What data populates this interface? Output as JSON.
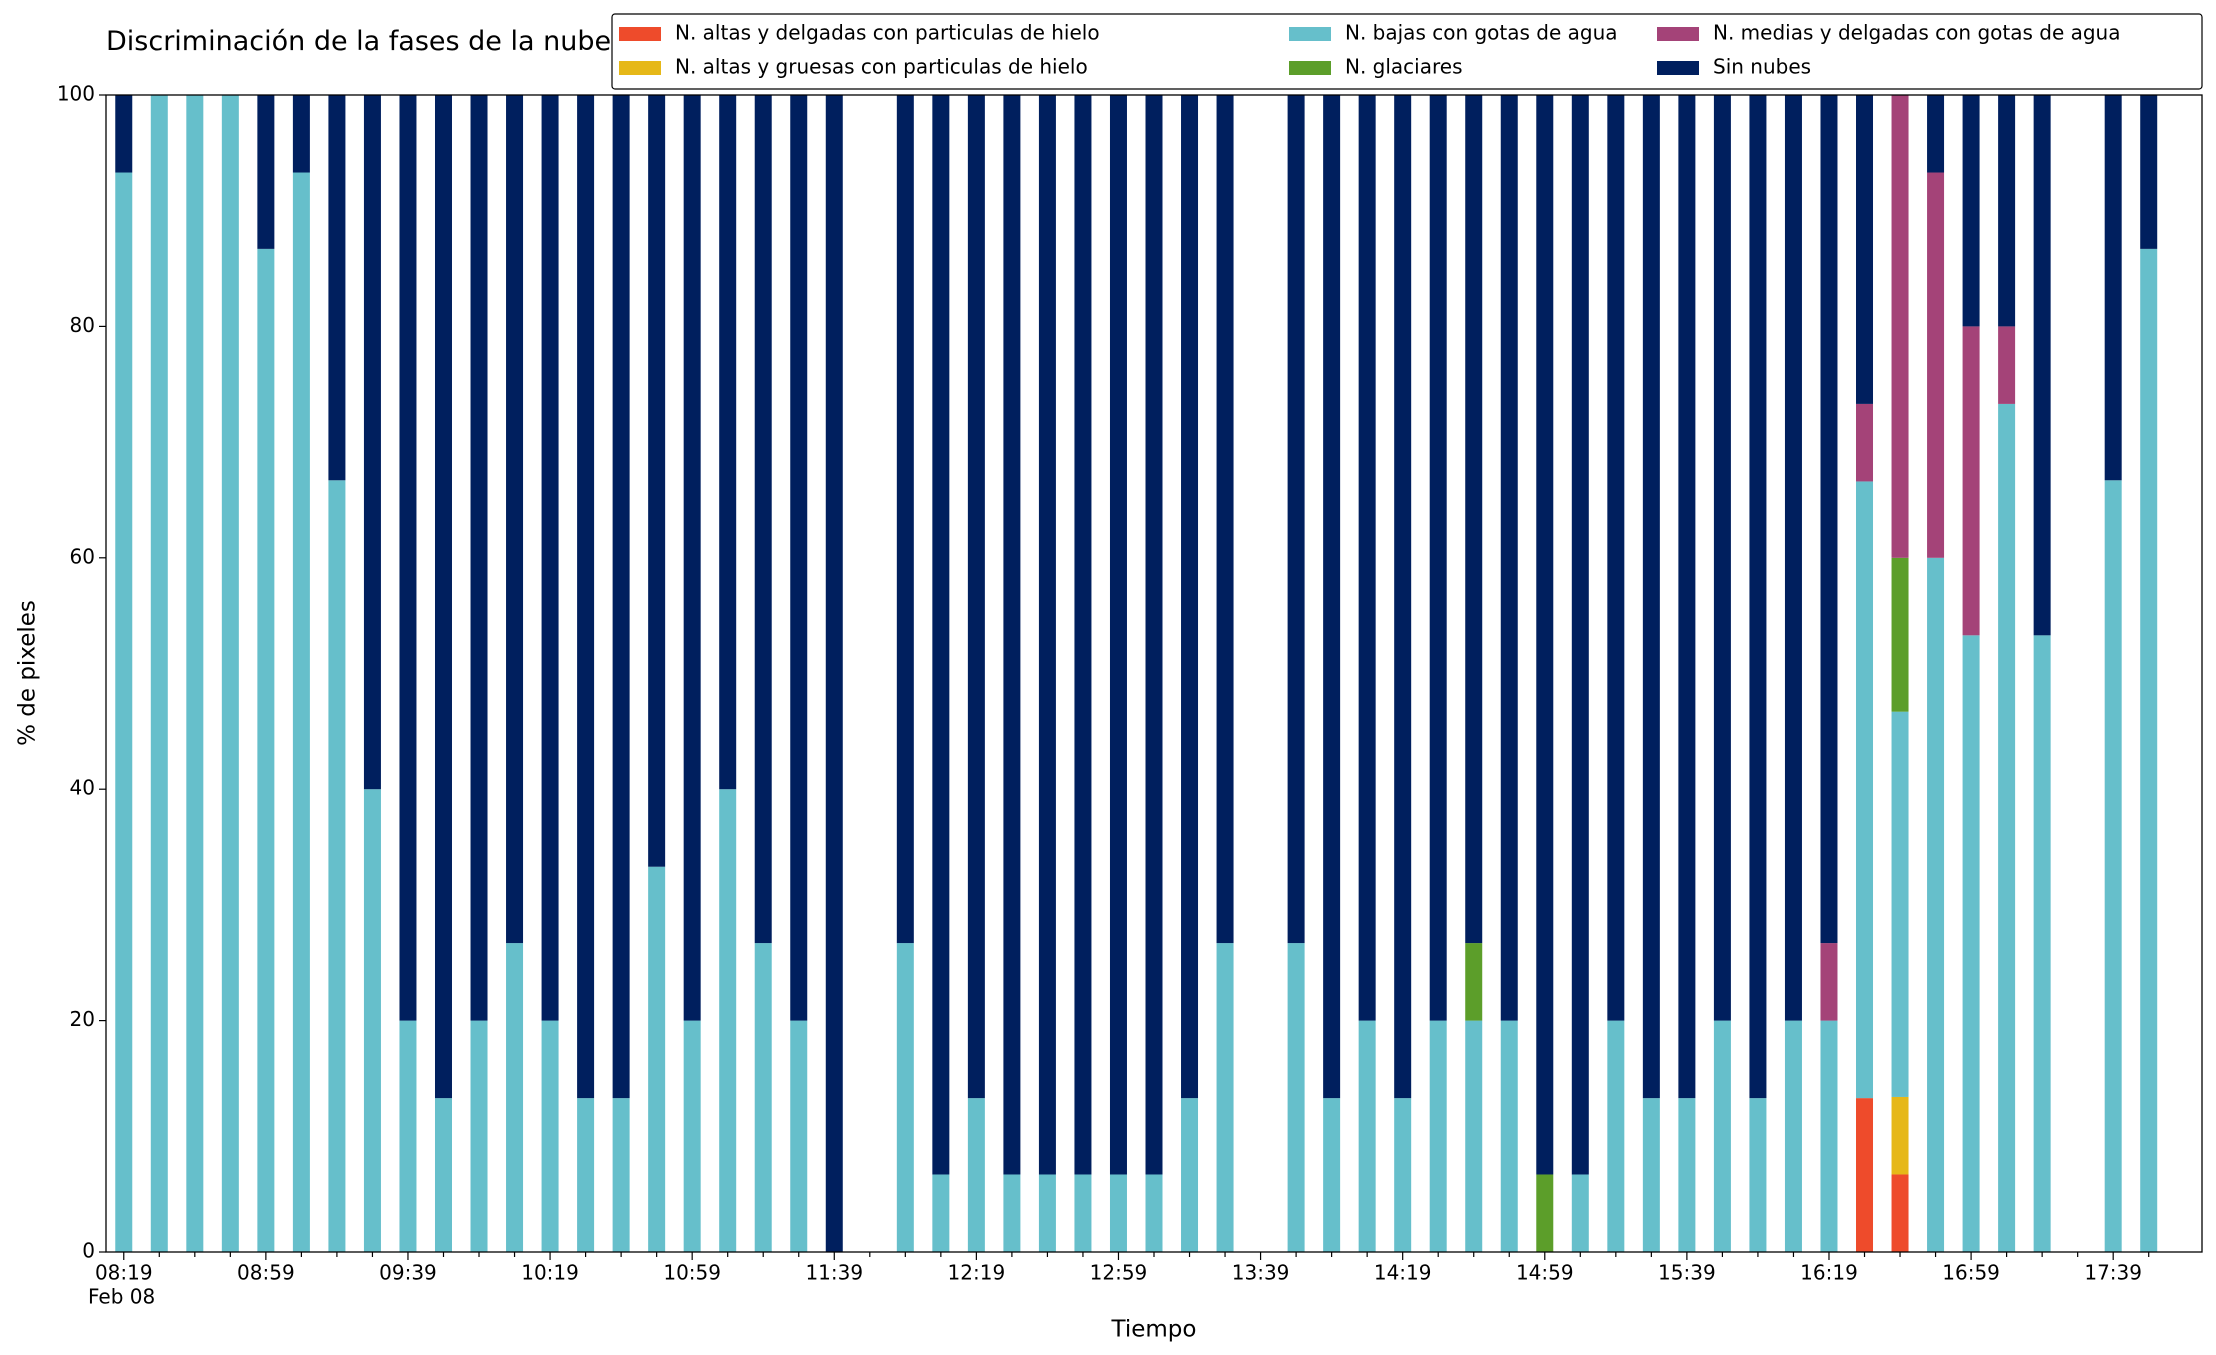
{
  "chart_data": {
    "type": "bar",
    "stacked": true,
    "title": "Discriminación de la fases de la nube en Copacabana",
    "xlabel": "Tiempo",
    "ylabel": "% de pixeles",
    "date_label": "Feb 08",
    "categories": [
      "08:19",
      null,
      null,
      null,
      "08:59",
      null,
      null,
      null,
      "09:39",
      null,
      null,
      null,
      "10:19",
      null,
      null,
      null,
      "10:59",
      null,
      null,
      null,
      "11:39",
      null,
      null,
      null,
      "12:19",
      null,
      null,
      null,
      "12:59",
      null,
      null,
      null,
      "13:39",
      null,
      null,
      null,
      "14:19",
      null,
      null,
      null,
      "14:59",
      null,
      null,
      null,
      "15:39",
      null,
      null,
      null,
      "16:19",
      null,
      null,
      null,
      "16:59",
      null,
      null,
      null,
      "17:39",
      null
    ],
    "series": [
      {
        "name": "N. altas y delgadas con particulas de hielo",
        "color": "#ee4b2b",
        "values": [
          0,
          0,
          0,
          0,
          0,
          0,
          0,
          0,
          0,
          0,
          0,
          0,
          0,
          0,
          0,
          0,
          0,
          0,
          0,
          0,
          0,
          null,
          0,
          0,
          0,
          0,
          0,
          0,
          0,
          0,
          0,
          0,
          null,
          0,
          0,
          0,
          0,
          0,
          0,
          0,
          0,
          0,
          0,
          0,
          0,
          0,
          0,
          0,
          0,
          13.3,
          6.7,
          0,
          0,
          0,
          0,
          null,
          0,
          0
        ]
      },
      {
        "name": "N. altas y gruesas con particulas de hielo",
        "color": "#e6b818",
        "values": [
          0,
          0,
          0,
          0,
          0,
          0,
          0,
          0,
          0,
          0,
          0,
          0,
          0,
          0,
          0,
          0,
          0,
          0,
          0,
          0,
          0,
          null,
          0,
          0,
          0,
          0,
          0,
          0,
          0,
          0,
          0,
          0,
          null,
          0,
          0,
          0,
          0,
          0,
          0,
          0,
          0,
          0,
          0,
          0,
          0,
          0,
          0,
          0,
          0,
          0,
          6.7,
          0,
          0,
          0,
          0,
          null,
          0,
          0
        ]
      },
      {
        "name": "N. bajas con gotas de agua",
        "color": "#66bfcb",
        "values": [
          93.3,
          100,
          100,
          100,
          86.7,
          93.3,
          66.7,
          40,
          20,
          13.3,
          20,
          26.7,
          20,
          13.3,
          13.3,
          33.3,
          20,
          40,
          26.7,
          20,
          0,
          null,
          26.7,
          6.7,
          13.3,
          6.7,
          6.7,
          6.7,
          6.7,
          6.7,
          13.3,
          26.7,
          null,
          26.7,
          13.3,
          20,
          13.3,
          20,
          20,
          20,
          0,
          6.7,
          20,
          13.3,
          13.3,
          20,
          13.3,
          20,
          20,
          53.3,
          33.3,
          60,
          53.3,
          73.3,
          53.3,
          null,
          66.7,
          86.7
        ]
      },
      {
        "name": "N. glaciares",
        "color": "#5c9e2a",
        "values": [
          0,
          0,
          0,
          0,
          0,
          0,
          0,
          0,
          0,
          0,
          0,
          0,
          0,
          0,
          0,
          0,
          0,
          0,
          0,
          0,
          0,
          null,
          0,
          0,
          0,
          0,
          0,
          0,
          0,
          0,
          0,
          0,
          null,
          0,
          0,
          0,
          0,
          0,
          6.7,
          0,
          6.7,
          0,
          0,
          0,
          0,
          0,
          0,
          0,
          0,
          0,
          13.3,
          0,
          0,
          0,
          0,
          null,
          0,
          0
        ]
      },
      {
        "name": "N. medias y delgadas con gotas de agua",
        "color": "#a44378",
        "values": [
          0,
          0,
          0,
          0,
          0,
          0,
          0,
          0,
          0,
          0,
          0,
          0,
          0,
          0,
          0,
          0,
          0,
          0,
          0,
          0,
          0,
          null,
          0,
          0,
          0,
          0,
          0,
          0,
          0,
          0,
          0,
          0,
          null,
          0,
          0,
          0,
          0,
          0,
          0,
          0,
          0,
          0,
          0,
          0,
          0,
          0,
          0,
          0,
          6.7,
          6.7,
          40,
          33.3,
          26.7,
          6.7,
          0,
          null,
          0,
          0
        ]
      },
      {
        "name": "Sin nubes",
        "color": "#001f5e",
        "values": [
          6.7,
          0,
          0,
          0,
          13.3,
          6.7,
          33.3,
          60,
          80,
          86.7,
          80,
          73.3,
          80,
          86.7,
          86.7,
          66.7,
          80,
          60,
          73.3,
          80,
          100,
          null,
          73.3,
          93.3,
          86.7,
          93.3,
          93.3,
          93.3,
          93.3,
          93.3,
          86.7,
          73.3,
          null,
          73.3,
          86.7,
          80,
          86.7,
          80,
          73.3,
          80,
          93.3,
          93.3,
          80,
          86.7,
          86.7,
          80,
          86.7,
          80,
          73.3,
          26.7,
          0,
          6.7,
          20,
          20,
          46.7,
          null,
          33.3,
          13.3
        ]
      }
    ],
    "ylim": [
      0,
      100
    ],
    "yticks": [
      0,
      20,
      40,
      60,
      80,
      100
    ],
    "grid": false,
    "legend": "upper right"
  }
}
